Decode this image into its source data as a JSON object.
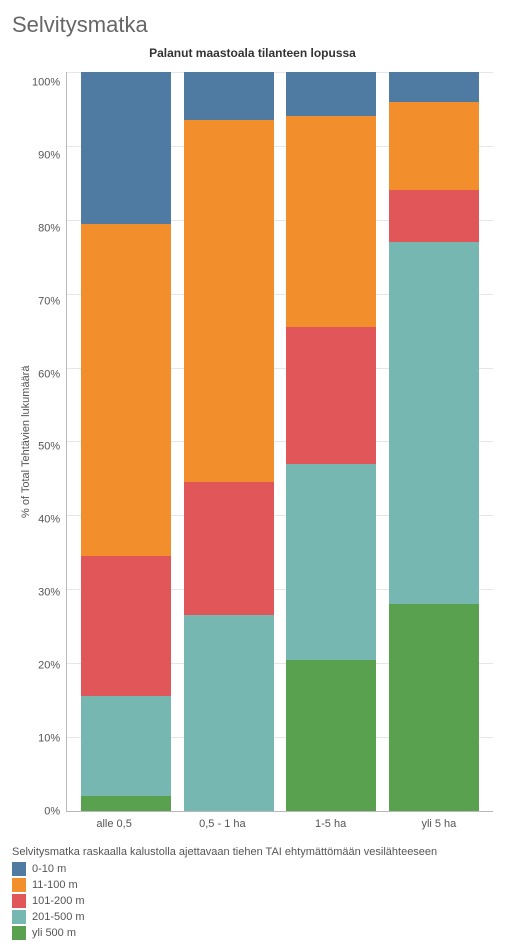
{
  "page_title": "Selvitysmatka",
  "chart": {
    "type": "stacked-bar",
    "title": "Palanut maastoala tilanteen lopussa",
    "y_label": "% of Total Tehtävien lukumäärä",
    "ylim": [
      0,
      100
    ],
    "ytick_step": 10,
    "yticks": [
      "100%",
      "90%",
      "80%",
      "70%",
      "60%",
      "50%",
      "40%",
      "30%",
      "20%",
      "10%",
      "0%"
    ],
    "categories": [
      "alle 0,5",
      "0,5 - 1 ha",
      "1-5 ha",
      "yli 5 ha"
    ],
    "series_order": [
      "0-10 m",
      "11-100 m",
      "101-200 m",
      "201-500 m",
      "yli 500 m"
    ],
    "colors": {
      "0-10 m": "#4f7aa2",
      "11-100 m": "#f28e2b",
      "101-200 m": "#e15759",
      "201-500 m": "#76b7b2",
      "yli 500 m": "#59a14f"
    },
    "data": {
      "alle 0,5": {
        "0-10 m": 20.5,
        "11-100 m": 45.0,
        "101-200 m": 19.0,
        "201-500 m": 13.5,
        "yli 500 m": 2.0
      },
      "0,5 - 1 ha": {
        "0-10 m": 6.5,
        "11-100 m": 49.0,
        "101-200 m": 18.0,
        "201-500 m": 26.5,
        "yli 500 m": 0.0
      },
      "1-5 ha": {
        "0-10 m": 6.0,
        "11-100 m": 28.5,
        "101-200 m": 18.5,
        "201-500 m": 26.5,
        "yli 500 m": 20.5
      },
      "yli 5 ha": {
        "0-10 m": 4.0,
        "11-100 m": 12.0,
        "101-200 m": 7.0,
        "201-500 m": 49.0,
        "yli 500 m": 28.0
      }
    },
    "background_color": "#ffffff",
    "grid_color": "#e6e6e6",
    "label_fontsize": 11,
    "title_fontsize": 12
  },
  "legend": {
    "title": "Selvitysmatka raskaalla kalustolla ajettavaan tiehen TAI ehtymättömään vesilähteeseen",
    "items": [
      {
        "label": "0-10 m",
        "color": "#4f7aa2"
      },
      {
        "label": "11-100 m",
        "color": "#f28e2b"
      },
      {
        "label": "101-200 m",
        "color": "#e15759"
      },
      {
        "label": "201-500 m",
        "color": "#76b7b2"
      },
      {
        "label": "yli 500 m",
        "color": "#59a14f"
      }
    ]
  }
}
